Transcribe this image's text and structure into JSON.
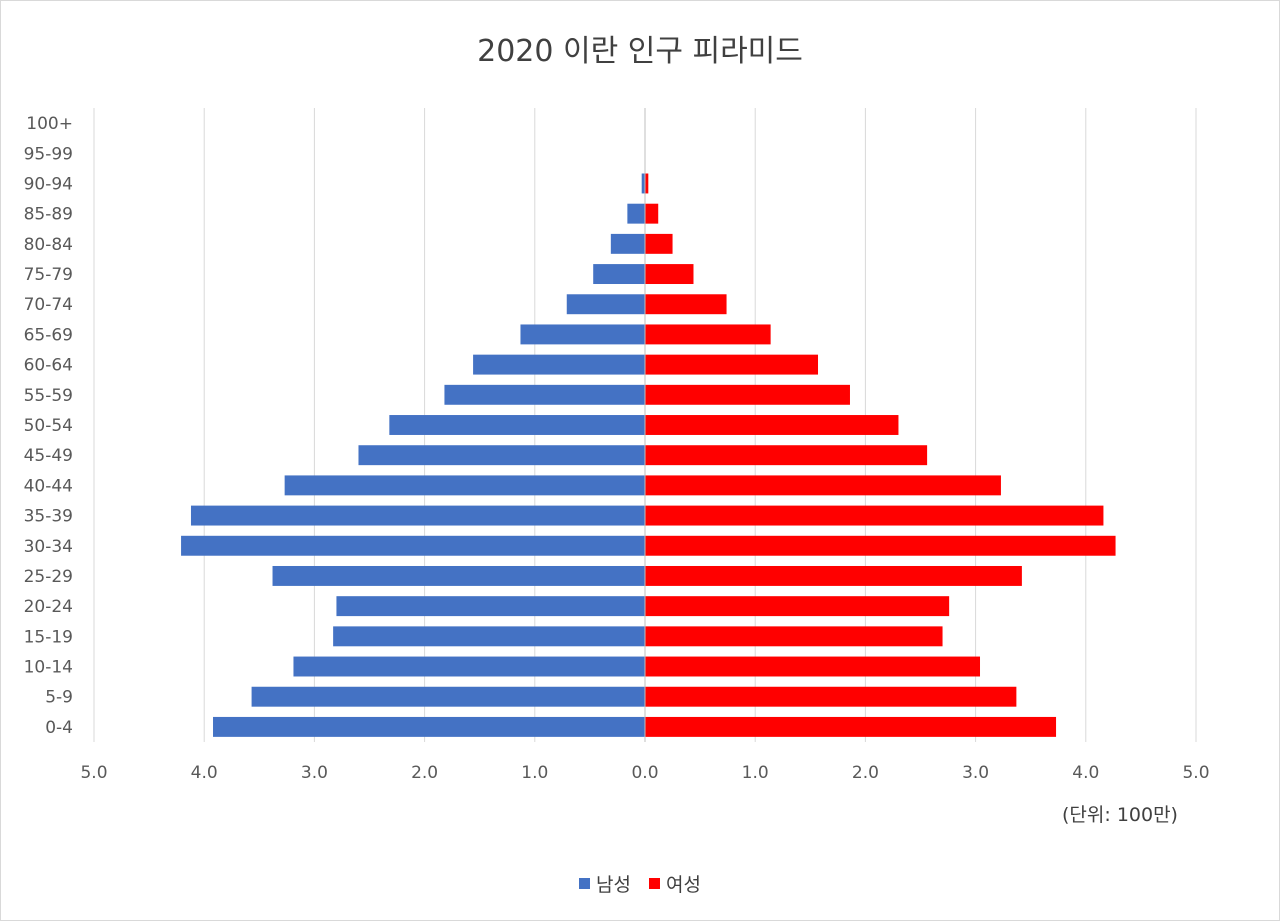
{
  "chart_data": {
    "type": "bar",
    "orientation": "horizontal",
    "title": "2020 이란 인구 피라미드",
    "unit_note": "(단위: 100만)",
    "categories": [
      "100+",
      "95-99",
      "90-94",
      "85-89",
      "80-84",
      "75-79",
      "70-74",
      "65-69",
      "60-64",
      "55-59",
      "50-54",
      "45-49",
      "40-44",
      "35-39",
      "30-34",
      "25-29",
      "20-24",
      "15-19",
      "10-14",
      "5-9",
      "0-4"
    ],
    "series": [
      {
        "name": "남성",
        "color": "#4472c4",
        "values": [
          0.0,
          0.0,
          0.03,
          0.16,
          0.31,
          0.47,
          0.71,
          1.13,
          1.56,
          1.82,
          2.32,
          2.6,
          3.27,
          4.12,
          4.21,
          3.38,
          2.8,
          2.83,
          3.19,
          3.57,
          3.92
        ]
      },
      {
        "name": "여성",
        "color": "#ff0000",
        "values": [
          0.0,
          0.0,
          0.03,
          0.12,
          0.25,
          0.44,
          0.74,
          1.14,
          1.57,
          1.86,
          2.3,
          2.56,
          3.23,
          4.16,
          4.27,
          3.42,
          2.76,
          2.7,
          3.04,
          3.37,
          3.73
        ]
      }
    ],
    "xlim": [
      -5.0,
      5.0
    ],
    "xticks": [
      "5.0",
      "4.0",
      "3.0",
      "2.0",
      "1.0",
      "0.0",
      "1.0",
      "2.0",
      "3.0",
      "4.0",
      "5.0"
    ],
    "grid": "vertical",
    "legend": "bottom-center"
  }
}
